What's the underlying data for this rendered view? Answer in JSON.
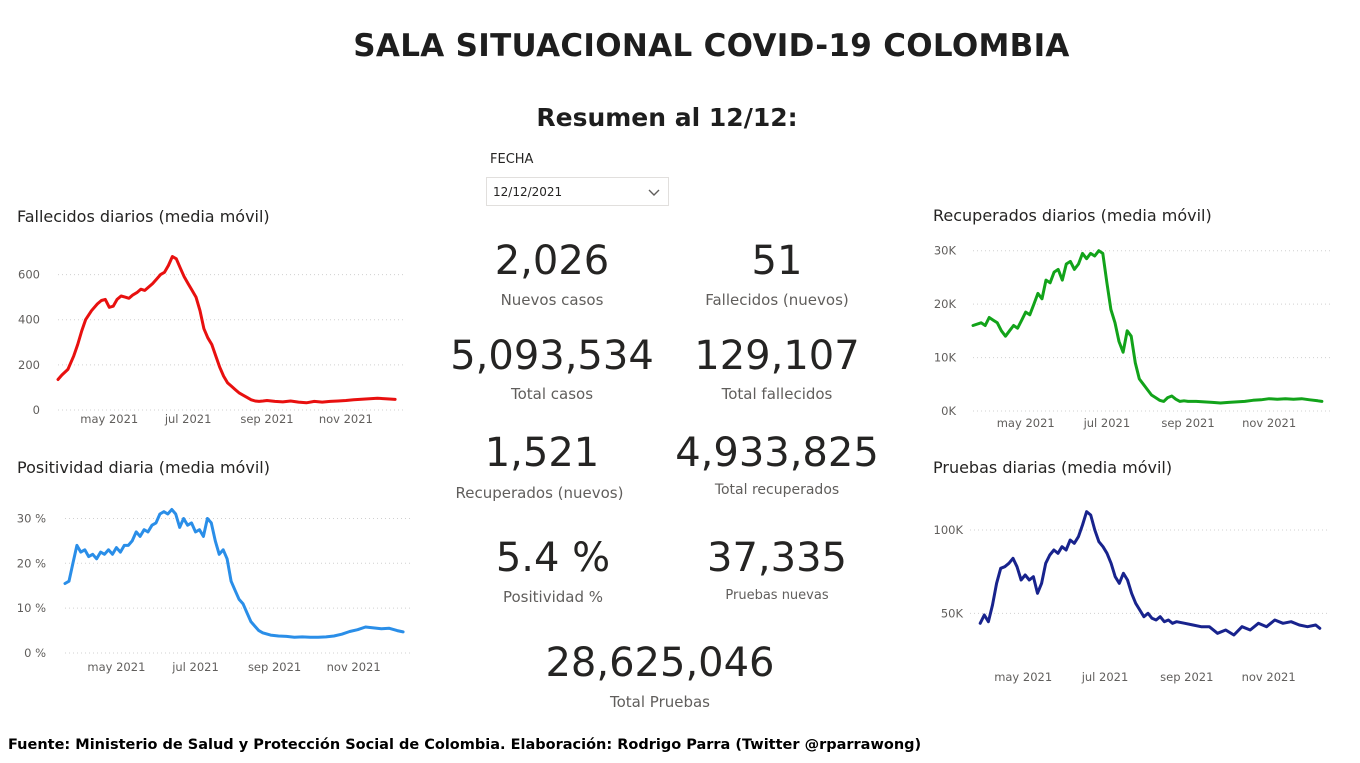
{
  "header": {
    "title": "SALA SITUACIONAL COVID-19 COLOMBIA",
    "subtitle": "Resumen al 12/12:"
  },
  "slicer": {
    "label": "FECHA",
    "value": "12/12/2021",
    "icon": "chevron-down-icon"
  },
  "kpis": {
    "nuevos_casos": {
      "value": "2,026",
      "label": "Nuevos casos"
    },
    "fallecidos_nuevos": {
      "value": "51",
      "label": "Fallecidos (nuevos)"
    },
    "total_casos": {
      "value": "5,093,534",
      "label": "Total casos"
    },
    "total_fallecidos": {
      "value": "129,107",
      "label": "Total fallecidos"
    },
    "recuperados_nuevos": {
      "value": "1,521",
      "label": "Recuperados (nuevos)"
    },
    "total_recuperados": {
      "value": "4,933,825",
      "label": "Total recuperados"
    },
    "positividad": {
      "value": "5.4 %",
      "label": "Positividad %"
    },
    "pruebas_nuevas": {
      "value": "37,335",
      "label": "Pruebas nuevas"
    },
    "total_pruebas": {
      "value": "28,625,046",
      "label": "Total Pruebas"
    }
  },
  "footer": {
    "text": "Fuente: Ministerio de Salud y Protección Social de Colombia. Elaboración: Rodrigo Parra (Twitter @rparrawong)"
  },
  "chart_data": [
    {
      "id": "fallecidos",
      "type": "line",
      "title": "Fallecidos diarios (media móvil)",
      "color": "#e8100f",
      "x_ticks": [
        "may 2021",
        "jul 2021",
        "sep 2021",
        "nov 2021"
      ],
      "x_tick_pos": [
        1.3,
        3.3,
        5.3,
        7.3
      ],
      "y_ticks": [
        "0",
        "200",
        "400",
        "600"
      ],
      "y_tick_values": [
        0,
        200,
        400,
        600
      ],
      "xlim": [
        0,
        8.8
      ],
      "ylim": [
        0,
        700
      ],
      "grid": true,
      "x": [
        0,
        0.1,
        0.25,
        0.4,
        0.5,
        0.6,
        0.7,
        0.85,
        1.0,
        1.1,
        1.2,
        1.3,
        1.4,
        1.5,
        1.6,
        1.7,
        1.8,
        1.9,
        2.0,
        2.1,
        2.2,
        2.3,
        2.4,
        2.5,
        2.6,
        2.7,
        2.8,
        2.9,
        3.0,
        3.1,
        3.2,
        3.3,
        3.4,
        3.5,
        3.6,
        3.7,
        3.8,
        3.9,
        4.0,
        4.1,
        4.2,
        4.3,
        4.4,
        4.5,
        4.6,
        4.7,
        4.8,
        4.9,
        5.0,
        5.1,
        5.2,
        5.3,
        5.5,
        5.7,
        5.9,
        6.1,
        6.3,
        6.5,
        6.7,
        6.9,
        7.1,
        7.3,
        7.5,
        7.7,
        7.9,
        8.1,
        8.3,
        8.5,
        8.55
      ],
      "y": [
        135,
        155,
        180,
        240,
        290,
        350,
        400,
        440,
        470,
        485,
        490,
        455,
        460,
        490,
        505,
        500,
        495,
        510,
        520,
        535,
        530,
        545,
        560,
        580,
        600,
        610,
        640,
        680,
        670,
        630,
        590,
        560,
        530,
        500,
        440,
        360,
        320,
        290,
        240,
        190,
        150,
        120,
        105,
        90,
        75,
        65,
        55,
        45,
        40,
        38,
        40,
        42,
        38,
        36,
        40,
        35,
        32,
        38,
        35,
        38,
        40,
        42,
        45,
        48,
        50,
        52,
        50,
        48,
        47
      ]
    },
    {
      "id": "positividad",
      "type": "line",
      "title": "Positividad diaria (media móvil)",
      "color": "#2a8ee8",
      "x_ticks": [
        "may 2021",
        "jul 2021",
        "sep 2021",
        "nov 2021"
      ],
      "x_tick_pos": [
        1.3,
        3.3,
        5.3,
        7.3
      ],
      "y_ticks": [
        "0 %",
        "10 %",
        "20 %",
        "30 %"
      ],
      "y_tick_values": [
        0,
        10,
        20,
        30
      ],
      "xlim": [
        0,
        8.8
      ],
      "ylim": [
        0,
        33
      ],
      "grid": true,
      "x": [
        0,
        0.1,
        0.2,
        0.3,
        0.4,
        0.5,
        0.6,
        0.7,
        0.8,
        0.9,
        1.0,
        1.1,
        1.2,
        1.3,
        1.4,
        1.5,
        1.6,
        1.7,
        1.8,
        1.9,
        2.0,
        2.1,
        2.2,
        2.3,
        2.4,
        2.5,
        2.6,
        2.7,
        2.8,
        2.9,
        3.0,
        3.1,
        3.2,
        3.3,
        3.4,
        3.5,
        3.6,
        3.7,
        3.8,
        3.9,
        4.0,
        4.1,
        4.2,
        4.3,
        4.4,
        4.5,
        4.6,
        4.7,
        4.8,
        4.9,
        5.0,
        5.2,
        5.4,
        5.6,
        5.8,
        6.0,
        6.2,
        6.4,
        6.6,
        6.8,
        7.0,
        7.2,
        7.4,
        7.6,
        7.8,
        8.0,
        8.2,
        8.4,
        8.55
      ],
      "y": [
        15.5,
        16,
        20,
        24,
        22.5,
        23,
        21.5,
        22,
        21,
        22.5,
        22,
        23,
        22,
        23.5,
        22.5,
        24,
        24,
        25,
        27,
        26,
        27.5,
        27,
        28.5,
        29,
        31,
        31.5,
        31,
        32,
        31,
        28,
        30,
        28.5,
        29,
        27,
        27.5,
        26,
        30,
        29,
        25,
        22,
        23,
        21,
        16,
        14,
        12,
        11,
        9,
        7,
        6,
        5,
        4.5,
        4,
        3.8,
        3.7,
        3.5,
        3.6,
        3.5,
        3.5,
        3.6,
        3.8,
        4.2,
        4.8,
        5.2,
        5.8,
        5.6,
        5.4,
        5.5,
        5.0,
        4.7
      ]
    },
    {
      "id": "recuperados",
      "type": "line",
      "title": "Recuperados diarios (media móvil)",
      "color": "#12a31a",
      "x_ticks": [
        "may 2021",
        "jul 2021",
        "sep 2021",
        "nov 2021"
      ],
      "x_tick_pos": [
        1.3,
        3.3,
        5.3,
        7.3
      ],
      "y_ticks": [
        "0K",
        "10K",
        "20K",
        "30K"
      ],
      "y_tick_values": [
        0,
        10000,
        20000,
        30000
      ],
      "xlim": [
        0,
        8.8
      ],
      "ylim": [
        0,
        32000
      ],
      "grid": true,
      "x": [
        0,
        0.2,
        0.3,
        0.4,
        0.5,
        0.6,
        0.7,
        0.8,
        0.9,
        1.0,
        1.1,
        1.2,
        1.3,
        1.4,
        1.5,
        1.6,
        1.7,
        1.8,
        1.9,
        2.0,
        2.1,
        2.2,
        2.3,
        2.4,
        2.5,
        2.6,
        2.7,
        2.8,
        2.9,
        3.0,
        3.1,
        3.2,
        3.3,
        3.4,
        3.5,
        3.6,
        3.7,
        3.8,
        3.9,
        4.0,
        4.1,
        4.2,
        4.3,
        4.4,
        4.5,
        4.6,
        4.7,
        4.8,
        4.9,
        5.0,
        5.1,
        5.2,
        5.3,
        5.5,
        5.7,
        5.9,
        6.1,
        6.3,
        6.5,
        6.7,
        6.9,
        7.1,
        7.3,
        7.5,
        7.7,
        7.9,
        8.1,
        8.3,
        8.5,
        8.6
      ],
      "y": [
        16000,
        16500,
        16000,
        17500,
        17000,
        16500,
        15000,
        14000,
        15000,
        16000,
        15500,
        17000,
        18500,
        18000,
        20000,
        22000,
        21000,
        24500,
        24000,
        26000,
        26500,
        24500,
        27500,
        28000,
        26500,
        27500,
        29500,
        28500,
        29500,
        29000,
        30000,
        29500,
        24000,
        19000,
        16500,
        13000,
        11000,
        15000,
        14000,
        9000,
        6000,
        5000,
        4000,
        3000,
        2500,
        2000,
        1800,
        2500,
        2800,
        2200,
        1800,
        1900,
        1800,
        1800,
        1700,
        1600,
        1500,
        1600,
        1700,
        1800,
        2000,
        2100,
        2300,
        2200,
        2300,
        2200,
        2300,
        2100,
        1900,
        1800
      ]
    },
    {
      "id": "pruebas",
      "type": "line",
      "title": "Pruebas diarias (media móvil)",
      "color": "#18238d",
      "x_ticks": [
        "may 2021",
        "jul 2021",
        "sep 2021",
        "nov 2021"
      ],
      "x_tick_pos": [
        1.3,
        3.3,
        5.3,
        7.3
      ],
      "y_ticks": [
        "50K",
        "100K"
      ],
      "y_tick_values": [
        50000,
        100000
      ],
      "xlim": [
        0,
        8.8
      ],
      "ylim": [
        25000,
        115000
      ],
      "grid": true,
      "x": [
        0.25,
        0.35,
        0.45,
        0.55,
        0.65,
        0.75,
        0.85,
        0.95,
        1.05,
        1.15,
        1.25,
        1.35,
        1.45,
        1.55,
        1.65,
        1.75,
        1.85,
        1.95,
        2.05,
        2.15,
        2.25,
        2.35,
        2.45,
        2.55,
        2.65,
        2.75,
        2.85,
        2.95,
        3.05,
        3.15,
        3.25,
        3.35,
        3.45,
        3.55,
        3.65,
        3.75,
        3.85,
        3.95,
        4.05,
        4.15,
        4.25,
        4.35,
        4.45,
        4.55,
        4.65,
        4.75,
        4.85,
        4.95,
        5.05,
        5.25,
        5.45,
        5.65,
        5.85,
        6.05,
        6.25,
        6.45,
        6.65,
        6.85,
        7.05,
        7.25,
        7.45,
        7.65,
        7.85,
        8.05,
        8.25,
        8.45,
        8.55
      ],
      "y": [
        44000,
        49000,
        45000,
        55000,
        68000,
        77000,
        78000,
        80000,
        83000,
        78000,
        70000,
        73000,
        70000,
        72000,
        62000,
        68000,
        80000,
        85000,
        88000,
        86000,
        90000,
        88000,
        94000,
        92000,
        96000,
        103000,
        111000,
        109000,
        100000,
        93000,
        90000,
        86000,
        80000,
        72000,
        68000,
        74000,
        70000,
        62000,
        56000,
        52000,
        48000,
        50000,
        47000,
        46000,
        48000,
        45000,
        46000,
        44000,
        45000,
        44000,
        43000,
        42000,
        42000,
        38000,
        40000,
        37000,
        42000,
        40000,
        44000,
        42000,
        46000,
        44000,
        45000,
        43000,
        42000,
        43000,
        41000
      ]
    }
  ]
}
